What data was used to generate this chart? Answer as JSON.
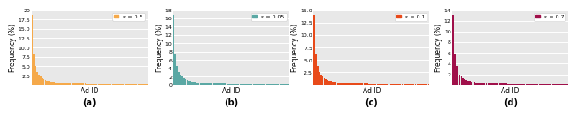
{
  "subplots": [
    {
      "label": "ε = 0.5",
      "color": "#F5A94A",
      "ylim": [
        0,
        20
      ],
      "yticks": [
        2.5,
        5.0,
        7.5,
        10.0,
        12.5,
        15.0,
        17.5,
        20.0
      ],
      "ytick_labels": [
        "2.5",
        "5.0",
        "7.5",
        "10.0",
        "12.5",
        "15.0",
        "17.5",
        "20"
      ],
      "subtitle": "(a)"
    },
    {
      "label": "ε = 0.05",
      "color": "#5BA8A4",
      "ylim": [
        0,
        18
      ],
      "yticks": [
        0,
        2,
        4,
        6,
        8,
        10,
        12,
        14,
        16,
        18
      ],
      "ytick_labels": [
        "0",
        "2",
        "4",
        "6",
        "8",
        "10",
        "12",
        "14",
        "16",
        "18"
      ],
      "subtitle": "(b)"
    },
    {
      "label": "ε = 0.1",
      "color": "#E84A1A",
      "ylim": [
        0,
        15
      ],
      "yticks": [
        2.5,
        5.0,
        7.5,
        10.0,
        12.5,
        15.0
      ],
      "ytick_labels": [
        "2.5",
        "5.0",
        "7.5",
        "10.0",
        "12.5",
        "15.0"
      ],
      "subtitle": "(c)"
    },
    {
      "label": "ε = 0.7",
      "color": "#A0104A",
      "ylim": [
        0,
        14
      ],
      "yticks": [
        2,
        4,
        6,
        8,
        10,
        12,
        14
      ],
      "ytick_labels": [
        "2",
        "4",
        "6",
        "8",
        "10",
        "12",
        "14"
      ],
      "subtitle": "(d)"
    }
  ],
  "n_bars": 70,
  "zipf_exponent": 1.2,
  "xlabel": "Ad ID",
  "ylabel": "Frequency (%)",
  "bg_color": "#E8E8E8",
  "fig_bg": "#FFFFFF",
  "grid_color": "#FFFFFF",
  "subtitle_fontsize": 7,
  "label_fontsize": 5.5,
  "tick_fontsize": 4.5,
  "legend_fontsize": 4.5
}
